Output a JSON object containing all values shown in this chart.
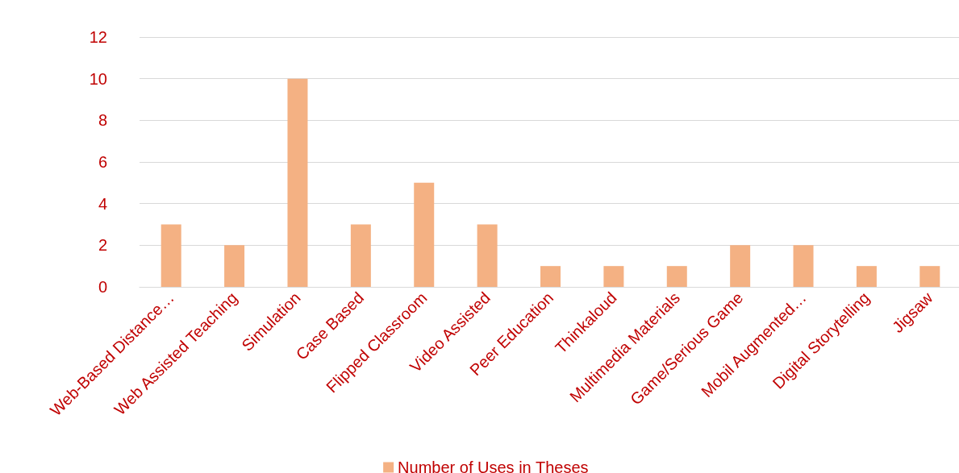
{
  "chart_data": {
    "type": "bar",
    "categories": [
      "Web-Based Distance…",
      "Web Assisted Teaching",
      "Simulation",
      "Case Based",
      "Flipped Classroom",
      "Video Assisted",
      "Peer Education",
      "Thinkaloud",
      "Multimedia Materials",
      "Game/Serious Game",
      "Mobil Augmented…",
      "Digital Storytelling",
      "Jigsaw"
    ],
    "series": [
      {
        "name": "Number of Uses in Theses",
        "color": "#f4b183",
        "values": [
          3,
          2,
          10,
          3,
          5,
          3,
          1,
          1,
          1,
          2,
          2,
          1,
          1
        ]
      }
    ],
    "ylim": [
      0,
      12
    ],
    "yticks": [
      0,
      2,
      4,
      6,
      8,
      10,
      12
    ],
    "grid": "y",
    "legend": "bottom"
  }
}
